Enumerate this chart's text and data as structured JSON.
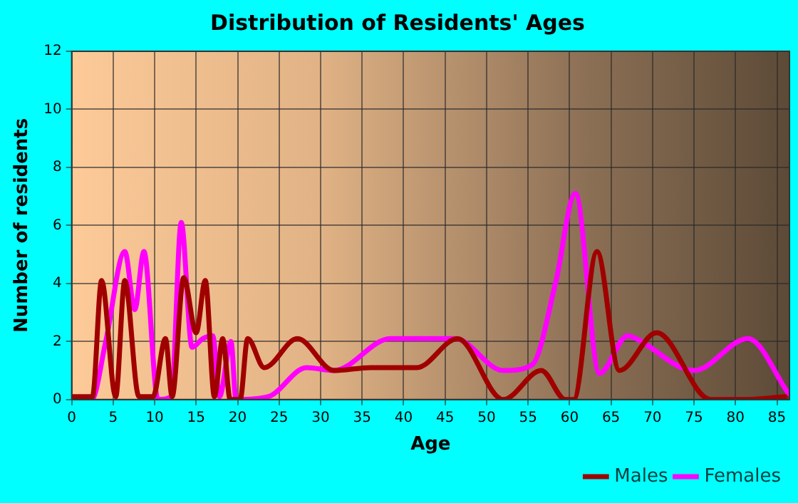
{
  "chart_data": {
    "type": "line",
    "title": "Distribution of Residents' Ages",
    "xlabel": "Age",
    "ylabel": "Number of residents",
    "xlim": [
      0,
      86.5
    ],
    "xticks": [
      0,
      5,
      10,
      15,
      20,
      25,
      30,
      35,
      40,
      45,
      50,
      55,
      60,
      65,
      70,
      75,
      80,
      85
    ],
    "ylim": [
      0,
      12
    ],
    "yticks": [
      0,
      2,
      4,
      6,
      8,
      10,
      12
    ],
    "grid": true,
    "legend": "bottom right",
    "marker": "none",
    "line_style": "solid",
    "series": [
      {
        "name": "Males",
        "color": "#a00000",
        "x": [
          0,
          2.5,
          3.6,
          5.3,
          6.4,
          8.1,
          9.8,
          11.3,
          12.1,
          13.5,
          15,
          16.1,
          17.2,
          18.2,
          19.1,
          20.3,
          21.2,
          23.2,
          27.2,
          31.6,
          36,
          41.6,
          46.5,
          52,
          56.6,
          59.5,
          60.5,
          63.3,
          66,
          70.5,
          77,
          81,
          86
        ],
        "values": [
          0.1,
          0.1,
          4.1,
          0.1,
          4.1,
          0.1,
          0.1,
          2.1,
          0.1,
          4.2,
          2.3,
          4.1,
          0.1,
          2.1,
          0,
          0,
          2.1,
          1.1,
          2.1,
          1,
          1.1,
          1.1,
          2.1,
          0,
          1,
          0,
          0,
          5.1,
          1,
          2.3,
          0,
          0,
          0.1
        ]
      },
      {
        "name": "Females",
        "color": "#ff00ff",
        "x": [
          0,
          2.4,
          4.1,
          6.4,
          7.6,
          8.7,
          10.4,
          12,
          13.2,
          14.5,
          15.8,
          17,
          17.8,
          19.2,
          19.8,
          23.7,
          28.3,
          31.6,
          38.4,
          46.2,
          52,
          55.5,
          58.3,
          60.7,
          63.6,
          67,
          68,
          75,
          81.5,
          86.4
        ],
        "values": [
          0,
          0,
          2,
          5.1,
          3.1,
          5.1,
          0,
          0.1,
          6.1,
          1.8,
          2.1,
          2.2,
          0.1,
          2,
          0,
          0.1,
          1.1,
          1,
          2.1,
          2.1,
          1,
          1.2,
          4,
          7.1,
          0.9,
          2.2,
          2.1,
          1,
          2.1,
          0.2
        ]
      }
    ]
  }
}
